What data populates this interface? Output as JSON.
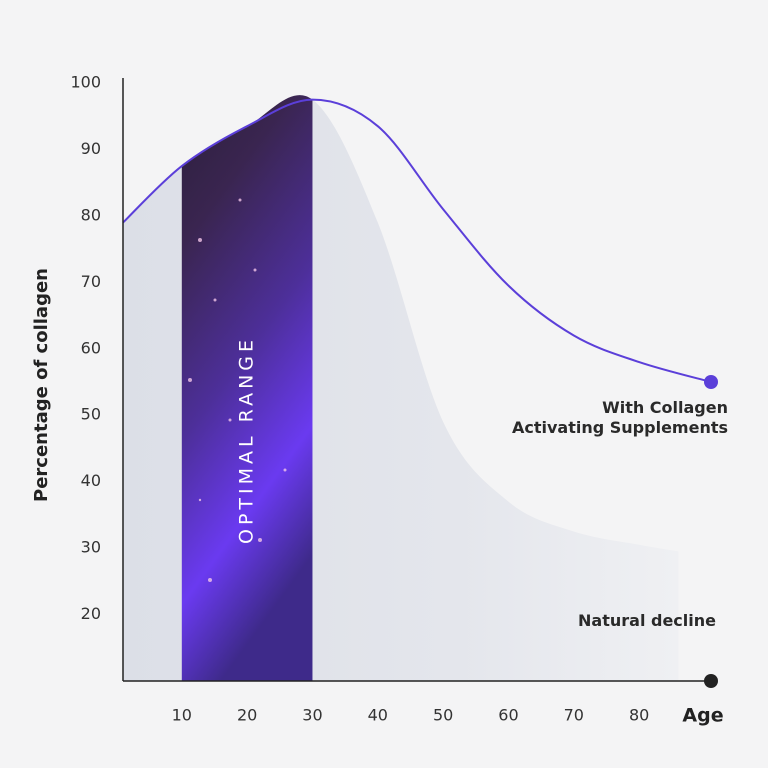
{
  "chart_data": {
    "type": "line",
    "x_label": "Age",
    "y_label": "Percentage of collagen",
    "xlim": [
      1,
      91
    ],
    "ylim": [
      10,
      100
    ],
    "xticks": [
      10,
      20,
      30,
      40,
      50,
      60,
      70,
      80
    ],
    "yticks": [
      20,
      30,
      40,
      50,
      60,
      70,
      80,
      90,
      100
    ],
    "optimal_range": {
      "label": "OPTIMAL RANGE",
      "xlim": [
        10,
        30
      ]
    },
    "series": [
      {
        "name": "With Collagen\nActivating Supplements",
        "color": "#5b3fd9",
        "style": "line",
        "x": [
          1,
          10,
          20,
          30,
          40,
          50,
          60,
          70,
          80,
          91
        ],
        "values": [
          79,
          87.5,
          93.5,
          97.5,
          93.5,
          81,
          69.5,
          62,
          58,
          55
        ]
      },
      {
        "name": "Natural decline",
        "color": "#dde0e8",
        "style": "area",
        "x": [
          1,
          10,
          20,
          30,
          40,
          50,
          60,
          70,
          80,
          86
        ],
        "values": [
          79,
          87.5,
          93.5,
          97.5,
          79,
          49,
          37,
          32.5,
          30.5,
          29.5
        ]
      }
    ]
  }
}
